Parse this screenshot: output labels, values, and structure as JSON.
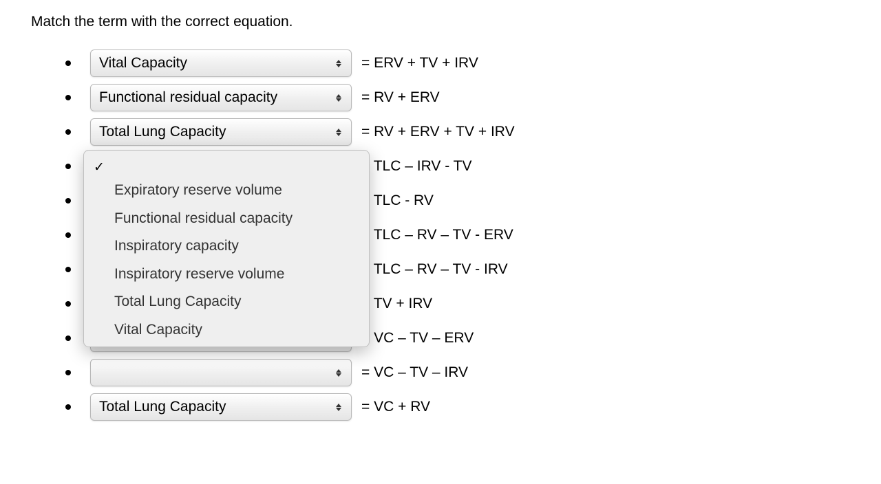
{
  "title": "Match the term with the correct equation.",
  "rows": [
    {
      "value": "Vital Capacity",
      "equation": "= ERV + TV + IRV"
    },
    {
      "value": "Functional residual capacity",
      "equation": "= RV + ERV"
    },
    {
      "value": "Total Lung Capacity",
      "equation": "= RV + ERV + TV + IRV"
    },
    {
      "value": "",
      "equation": "= TLC – IRV - TV"
    },
    {
      "value": "",
      "equation": "= TLC - RV"
    },
    {
      "value": "",
      "equation": "= TLC – RV – TV - ERV"
    },
    {
      "value": "",
      "equation": "= TLC – RV – TV - IRV"
    },
    {
      "value": "",
      "equation": "= TV + IRV"
    },
    {
      "value": "",
      "equation": "= VC – TV – ERV"
    },
    {
      "value": "",
      "equation": "= VC – TV – IRV"
    },
    {
      "value": "Total Lung Capacity",
      "equation": "= VC + RV"
    }
  ],
  "menu": {
    "options": [
      "Expiratory reserve volume",
      "Functional residual capacity",
      "Inspiratory capacity",
      "Inspiratory reserve volume",
      "Total Lung Capacity",
      "Vital Capacity"
    ]
  },
  "colors": {
    "background": "#ffffff",
    "text": "#000000",
    "dropdown_border": "#b8b8b8",
    "menu_bg": "#efefef",
    "menu_border": "#c0c0c0"
  }
}
